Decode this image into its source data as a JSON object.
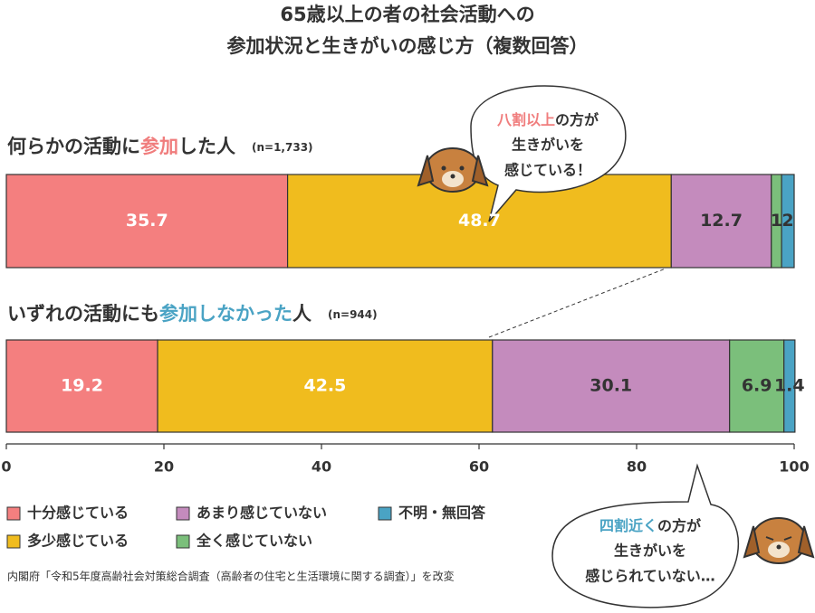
{
  "chart_data": {
    "type": "stacked-bar",
    "title": [
      "65歳以上の者の社会活動への",
      "参加状況と生きがいの感じ方（複数回答）"
    ],
    "categories": [
      [
        "何らかの活動に",
        "参加",
        "した人"
      ],
      [
        "いずれの活動にも",
        "参加しなかった",
        "人"
      ]
    ],
    "sample_sizes": [
      "(n=1,733)",
      "(n=944)"
    ],
    "series": [
      {
        "name": "十分感じている",
        "color": "#f47f7f",
        "label_color": "#ffffff",
        "values": [
          35.7,
          19.2
        ]
      },
      {
        "name": "多少感じている",
        "color": "#f0bc1e",
        "label_color": "#ffffff",
        "values": [
          48.7,
          42.5
        ]
      },
      {
        "name": "あまり感じていない",
        "color": "#c48bbd",
        "label_color": "#333333",
        "values": [
          12.7,
          30.1
        ]
      },
      {
        "name": "全く感じていない",
        "color": "#7bbf7b",
        "label_color": "#333333",
        "values": [
          1.3,
          6.9
        ],
        "value_labels": [
          "1",
          "6.9"
        ]
      },
      {
        "name": "不明・無回答",
        "color": "#4aa3c4",
        "label_color": "#333333",
        "values": [
          1.6,
          1.4
        ],
        "value_labels": [
          "2",
          "1.4"
        ]
      }
    ],
    "xlim": [
      0,
      100
    ],
    "xticks": [
      0,
      20,
      40,
      60,
      80,
      100
    ],
    "callouts": [
      [
        [
          "八割以上",
          "の方が"
        ],
        "生きがいを",
        "感じている！"
      ],
      [
        [
          "四割近く",
          "の方が"
        ],
        "生きがいを",
        "感じられていない…"
      ]
    ],
    "source": "内閣府「令和5年度高齢社会対策総合調査（高齢者の住宅と生活環境に関する調査）」を改変"
  }
}
